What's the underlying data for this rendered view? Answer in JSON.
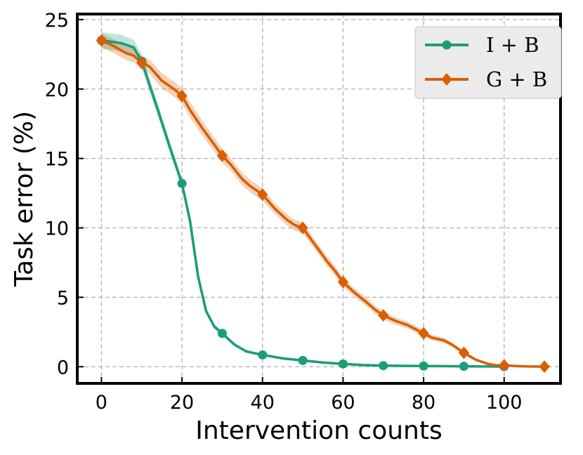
{
  "chart_data": {
    "type": "line",
    "title": "",
    "xlabel": "Intervention counts",
    "ylabel": "Task error (%)",
    "xlim": [
      -6,
      114
    ],
    "ylim": [
      -1.2,
      25.4
    ],
    "xticks": [
      0,
      20,
      40,
      60,
      80,
      100
    ],
    "yticks": [
      0,
      5,
      10,
      15,
      20,
      25
    ],
    "grid": true,
    "legend_position": "top-right",
    "series": [
      {
        "name": "I + B",
        "color": "#1b9e77",
        "marker": "circle",
        "x": [
          0,
          5,
          8,
          10,
          14,
          17,
          20,
          22,
          24,
          26,
          28,
          30,
          33,
          36,
          40,
          45,
          50,
          55,
          60,
          65,
          70,
          75,
          80,
          85,
          90,
          95,
          100
        ],
        "y": [
          23.5,
          23.3,
          23.0,
          22.0,
          18.5,
          15.8,
          13.2,
          10.5,
          6.5,
          4.0,
          2.9,
          2.4,
          1.6,
          1.1,
          0.85,
          0.6,
          0.45,
          0.3,
          0.2,
          0.12,
          0.08,
          0.06,
          0.05,
          0.04,
          0.03,
          0.02,
          0.01
        ],
        "band": [
          0.6,
          0.6,
          0.55,
          0.5,
          0.45,
          0.4,
          0.35,
          0.3,
          0.25,
          0.2,
          0.18,
          0.15,
          0.12,
          0.1,
          0.08,
          0.06,
          0.05,
          0.04,
          0.03,
          0.02,
          0.02,
          0.02,
          0.02,
          0.02,
          0.02,
          0.02,
          0.02
        ],
        "marker_x": [
          0,
          10,
          20,
          30,
          40,
          50,
          60,
          70,
          80,
          90,
          100
        ],
        "marker_y": [
          23.5,
          22.0,
          13.2,
          2.4,
          0.85,
          0.45,
          0.2,
          0.08,
          0.05,
          0.03,
          0.01
        ]
      },
      {
        "name": "G + B",
        "color": "#d95f02",
        "marker": "diamond",
        "x": [
          0,
          3,
          6,
          8,
          10,
          12,
          15,
          18,
          20,
          22,
          25,
          28,
          30,
          32,
          35,
          37,
          40,
          43,
          46,
          48,
          50,
          53,
          56,
          58,
          60,
          63,
          66,
          68,
          70,
          73,
          76,
          78,
          80,
          82,
          85,
          87,
          90,
          93,
          96,
          98,
          100,
          103,
          106,
          109,
          110,
          111
        ],
        "y": [
          23.5,
          23.1,
          22.6,
          22.4,
          21.9,
          21.6,
          20.6,
          20.0,
          19.5,
          18.5,
          17.2,
          16.0,
          15.2,
          14.6,
          13.5,
          13.0,
          12.4,
          11.4,
          10.6,
          10.2,
          10.0,
          8.8,
          7.6,
          6.9,
          6.1,
          5.3,
          4.6,
          4.1,
          3.7,
          3.3,
          3.0,
          2.7,
          2.4,
          2.1,
          1.9,
          1.6,
          1.0,
          0.5,
          0.2,
          0.1,
          0.1,
          0.05,
          0.02,
          0.01,
          0.01,
          0.01
        ],
        "band": [
          0.5,
          0.5,
          0.5,
          0.5,
          0.5,
          0.5,
          0.55,
          0.55,
          0.55,
          0.55,
          0.55,
          0.5,
          0.5,
          0.45,
          0.45,
          0.45,
          0.45,
          0.4,
          0.4,
          0.4,
          0.4,
          0.35,
          0.35,
          0.35,
          0.35,
          0.3,
          0.3,
          0.3,
          0.3,
          0.25,
          0.25,
          0.25,
          0.25,
          0.2,
          0.2,
          0.15,
          0.12,
          0.08,
          0.05,
          0.04,
          0.03,
          0.02,
          0.02,
          0.02,
          0.02,
          0.02
        ],
        "marker_x": [
          0,
          10,
          20,
          30,
          40,
          50,
          60,
          70,
          80,
          90,
          100,
          110
        ],
        "marker_y": [
          23.5,
          21.9,
          19.5,
          15.2,
          12.4,
          10.0,
          6.1,
          3.7,
          2.4,
          1.0,
          0.1,
          0.01
        ]
      }
    ]
  }
}
